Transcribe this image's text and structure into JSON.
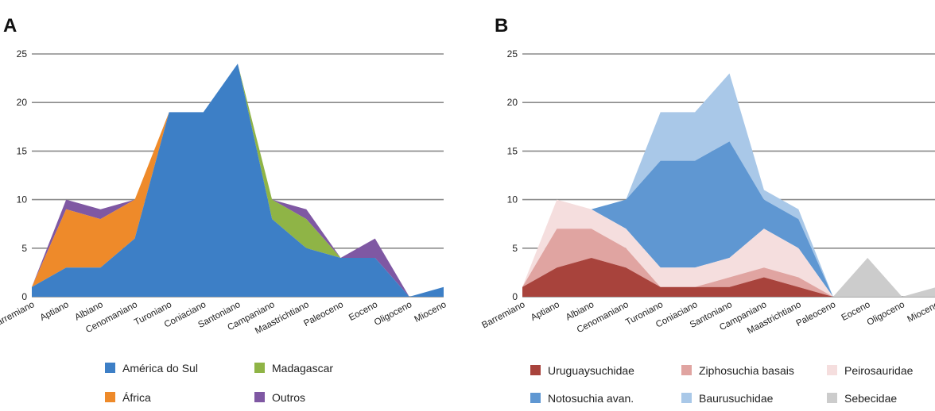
{
  "chart_data": [
    {
      "panel": "A",
      "type": "area",
      "stacked": true,
      "categories": [
        "Barremiano",
        "Aptiano",
        "Albiano",
        "Cenomaniano",
        "Turoniano",
        "Coniaciano",
        "Santoniano",
        "Campaniano",
        "Maastrichtiano",
        "Paleoceno",
        "Eoceno",
        "Oligoceno",
        "Mioceno"
      ],
      "ylim": [
        0,
        25
      ],
      "yticks": [
        0,
        5,
        10,
        15,
        20,
        25
      ],
      "grid": true,
      "legend_position": "bottom",
      "series": [
        {
          "name": "América do Sul",
          "color": "#3d7fc6",
          "values": [
            1,
            3,
            3,
            6,
            19,
            19,
            24,
            8,
            5,
            4,
            4,
            0,
            1
          ]
        },
        {
          "name": "África",
          "color": "#ee8a2a",
          "values": [
            0,
            6,
            5,
            4,
            0,
            0,
            0,
            0,
            0,
            0,
            0,
            0,
            0
          ]
        },
        {
          "name": "Madagascar",
          "color": "#8fb446",
          "values": [
            0,
            0,
            0,
            0,
            0,
            0,
            0,
            2,
            3,
            0,
            0,
            0,
            0
          ]
        },
        {
          "name": "Outros",
          "color": "#7f58a3",
          "values": [
            0,
            1,
            1,
            0,
            0,
            0,
            0,
            0,
            1,
            0,
            2,
            0,
            0
          ]
        }
      ]
    },
    {
      "panel": "B",
      "type": "area",
      "stacked": true,
      "categories": [
        "Barremiano",
        "Aptiano",
        "Albiano",
        "Cenomaniano",
        "Turoniano",
        "Coniaciano",
        "Santoniano",
        "Campaniano",
        "Maastrichtiano",
        "Paleoceno",
        "Eoceno",
        "Oligoceno",
        "Mioceno"
      ],
      "ylim": [
        0,
        25
      ],
      "yticks": [
        0,
        5,
        10,
        15,
        20,
        25
      ],
      "grid": true,
      "legend_position": "bottom",
      "series": [
        {
          "name": "Uruguaysuchidae",
          "color": "#a8433c",
          "values": [
            1,
            3,
            4,
            3,
            1,
            1,
            1,
            2,
            1,
            0,
            0,
            0,
            0
          ]
        },
        {
          "name": "Ziphosuchia basais",
          "color": "#e0a4a1",
          "values": [
            0,
            4,
            3,
            2,
            0,
            0,
            1,
            1,
            1,
            0,
            0,
            0,
            0
          ]
        },
        {
          "name": "Peirosauridae",
          "color": "#f5dede",
          "values": [
            0,
            3,
            2,
            2,
            2,
            2,
            2,
            4,
            3,
            0,
            0,
            0,
            0
          ]
        },
        {
          "name": "Notosuchia avan.",
          "color": "#5f97d2",
          "values": [
            0,
            0,
            0,
            3,
            11,
            11,
            12,
            3,
            3,
            0,
            0,
            0,
            0
          ]
        },
        {
          "name": "Baurusuchidae",
          "color": "#a9c8e8",
          "values": [
            0,
            0,
            0,
            0,
            5,
            5,
            7,
            1,
            1,
            0,
            0,
            0,
            0
          ]
        },
        {
          "name": "Sebecidae",
          "color": "#cccccc",
          "values": [
            0,
            0,
            0,
            0,
            0,
            0,
            0,
            0,
            0,
            0,
            4,
            0,
            1
          ]
        }
      ]
    }
  ]
}
